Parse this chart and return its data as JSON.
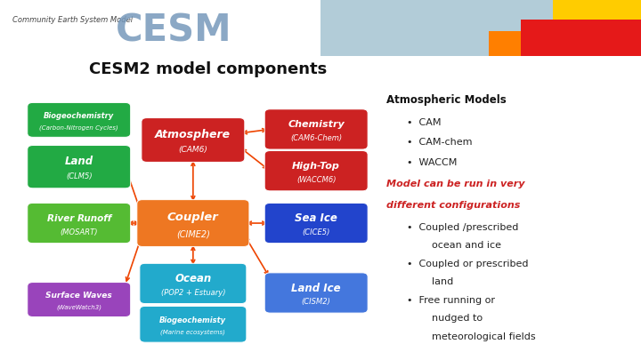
{
  "title": "CESM2 model components",
  "header_text": "Community Earth System Model",
  "background_color": "#ffffff",
  "diagram_bg": "#111111",
  "title_fontsize": 13,
  "boxes": {
    "biogeochem": {
      "label": "Biogeochemistry",
      "sublabel": "(Carbon-Nitrogen Cycles)",
      "color": "#22aa44"
    },
    "land": {
      "label": "Land",
      "sublabel": "(CLM5)",
      "color": "#22aa44"
    },
    "river": {
      "label": "River Runoff",
      "sublabel": "(MOSART)",
      "color": "#55bb33"
    },
    "surface": {
      "label": "Surface Waves",
      "sublabel": "(WaveWatch3)",
      "color": "#9944bb"
    },
    "atm": {
      "label": "Atmosphere",
      "sublabel": "(CAM6)",
      "color": "#cc2222"
    },
    "coupler": {
      "label": "Coupler",
      "sublabel": "(CIME2)",
      "color": "#ee7722"
    },
    "ocean": {
      "label": "Ocean",
      "sublabel": "(POP2 + Estuary)",
      "color": "#22aacc"
    },
    "bio_ocean": {
      "label": "Biogeochemisty",
      "sublabel": "(Marine ecosystems)",
      "color": "#22aacc"
    },
    "chemistry": {
      "label": "Chemistry",
      "sublabel": "(CAM6-Chem)",
      "color": "#cc2222"
    },
    "hightop": {
      "label": "High-Top",
      "sublabel": "(WACCM6)",
      "color": "#cc2222"
    },
    "seaice": {
      "label": "Sea Ice",
      "sublabel": "(CICE5)",
      "color": "#2244cc"
    },
    "landice": {
      "label": "Land Ice",
      "sublabel": "(CISM2)",
      "color": "#4477dd"
    }
  },
  "text_panel": {
    "title": "Atmospheric Models",
    "bullets_black": [
      "CAM",
      "CAM-chem",
      "WACCM"
    ],
    "highlight_text": "Model can be run in very\ndifferent configurations",
    "highlight_color": "#cc2222",
    "bullets_gray": [
      [
        "Coupled /prescribed",
        "ocean and ice"
      ],
      [
        "Coupled or prescribed",
        "land"
      ],
      [
        "Free running or",
        "nudged to",
        "meteorological fields"
      ]
    ]
  }
}
